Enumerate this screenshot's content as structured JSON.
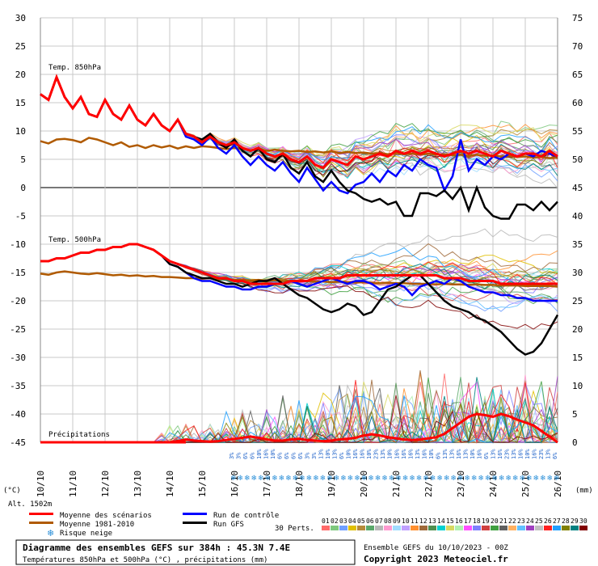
{
  "chart_data": {
    "type": "line",
    "title": "Diagramme des ensembles GEFS sur 384h : 45.3N 7.4E",
    "subtitle": "Températures 850hPa et 500hPa (°C) , précipitations (mm)",
    "run_info": "Ensemble GEFS du 10/10/2023 - 00Z",
    "copyright": "Copyright 2023 Meteociel.fr",
    "left_axis_unit": "(°C)",
    "right_axis_unit": "(mm)",
    "altitude": "Alt. 1502m",
    "left_ticks": [
      30,
      25,
      20,
      15,
      10,
      5,
      0,
      -5,
      -10,
      -15,
      -20,
      -25,
      -30,
      -35,
      -40,
      -45
    ],
    "right_ticks": [
      75,
      70,
      65,
      60,
      55,
      50,
      45,
      40,
      35,
      30,
      25,
      20,
      15,
      10,
      5,
      0
    ],
    "ylim_temp": [
      -45,
      30
    ],
    "ylim_precip": [
      0,
      75
    ],
    "precip_axis_note": "right scale: 850hPa panel offset +45, 500hPa panel offset +45, precip 0-15 mm lowest panel",
    "x_dates": [
      "10/10",
      "11/10",
      "12/10",
      "13/10",
      "14/10",
      "15/10",
      "16/10",
      "17/10",
      "18/10",
      "19/10",
      "20/10",
      "21/10",
      "22/10",
      "23/10",
      "24/10",
      "25/10",
      "26/10"
    ],
    "panel_labels": {
      "t850": "Temp. 850hPa",
      "t500": "Temp. 500hPa",
      "precip": "Précipitations"
    },
    "series": [
      {
        "name": "Moyenne des scénarios",
        "color": "#ff0000",
        "t850": [
          16.5,
          15.5,
          19.5,
          16,
          14,
          16,
          13,
          12.5,
          15.5,
          13,
          12,
          14.5,
          12,
          11,
          13,
          11,
          10,
          12,
          9.5,
          9,
          8,
          9,
          8,
          7.5,
          8,
          7,
          6.5,
          7,
          6,
          5.5,
          6,
          5,
          4.5,
          5.5,
          4,
          3.5,
          5,
          4.5,
          4,
          5.5,
          5,
          5.5,
          6,
          5.5,
          6.5,
          6,
          6.5,
          6,
          6.5,
          6,
          5.5,
          6,
          6.5,
          6,
          6.5,
          6,
          5.5,
          6.5,
          6,
          5.5,
          6,
          6,
          5.5,
          6.5,
          5.5
        ],
        "t500": [
          -13,
          -13,
          -12.5,
          -12.5,
          -12,
          -11.5,
          -11.5,
          -11,
          -11,
          -10.5,
          -10.5,
          -10,
          -10,
          -10.5,
          -11,
          -12,
          -13,
          -13.5,
          -14,
          -14.5,
          -15,
          -15.5,
          -16,
          -16,
          -16.5,
          -16.5,
          -17,
          -17,
          -17,
          -17,
          -17,
          -16.5,
          -16.5,
          -16.5,
          -16,
          -16,
          -16,
          -16,
          -15.5,
          -15.5,
          -15.5,
          -15.5,
          -15.5,
          -15.5,
          -15.5,
          -15.5,
          -15.5,
          -15.5,
          -15.5,
          -15.5,
          -16,
          -16,
          -16,
          -16.5,
          -16.5,
          -16.5,
          -16.5,
          -17,
          -17,
          -17,
          -17,
          -17,
          -17,
          -17,
          -17
        ],
        "precip": [
          0,
          0,
          0,
          0,
          0,
          0,
          0,
          0,
          0,
          0,
          0,
          0,
          0,
          0,
          0,
          0,
          0,
          0.2,
          0.5,
          0.3,
          0.2,
          0.1,
          0.2,
          0.4,
          0.6,
          0.8,
          1,
          0.8,
          0.5,
          0.3,
          0.3,
          0.5,
          0.6,
          0.4,
          0.3,
          0.2,
          0.3,
          0.5,
          0.6,
          0.8,
          1.2,
          1.4,
          1.2,
          0.9,
          0.7,
          0.5,
          0.4,
          0.5,
          0.7,
          0.9,
          1.5,
          2.5,
          3.5,
          4.5,
          5,
          4.8,
          4.5,
          5,
          4.6,
          4,
          3.5,
          3,
          2,
          1,
          0
        ]
      },
      {
        "name": "Moyenne 1981-2010",
        "color": "#b05a00",
        "t850": [
          8.2,
          7.8,
          8.5,
          8.6,
          8.4,
          8,
          8.8,
          8.5,
          8,
          7.5,
          8,
          7.2,
          7.5,
          7,
          7.5,
          7.1,
          7.4,
          6.9,
          7.3,
          7,
          7.3,
          7.2,
          7,
          6.8,
          7,
          6.8,
          6.6,
          6.8,
          6.5,
          6.7,
          6.5,
          6.4,
          6.5,
          6.3,
          6.4,
          6.2,
          6.4,
          6.1,
          6.3,
          6.1,
          6.2,
          6,
          6.1,
          5.9,
          6.1,
          5.9,
          6,
          5.8,
          6,
          5.8,
          5.9,
          5.7,
          5.8,
          5.6,
          5.8,
          5.6,
          5.7,
          5.5,
          5.6,
          5.4,
          5.5,
          5.3,
          5.4,
          5.2,
          5.3
        ],
        "t500": [
          -15.2,
          -15.4,
          -15,
          -14.8,
          -15,
          -15.2,
          -15.3,
          -15.1,
          -15.3,
          -15.5,
          -15.4,
          -15.6,
          -15.5,
          -15.7,
          -15.6,
          -15.8,
          -15.8,
          -15.9,
          -16,
          -16,
          -16.1,
          -16,
          -16.2,
          -16.1,
          -16.3,
          -16.3,
          -16.4,
          -16.3,
          -16.5,
          -16.4,
          -16.5,
          -16.5,
          -16.6,
          -16.5,
          -16.6,
          -16.6,
          -16.7,
          -16.6,
          -16.7,
          -16.8,
          -16.7,
          -16.8,
          -16.9,
          -16.8,
          -16.9,
          -16.9,
          -17,
          -17,
          -17,
          -17.1,
          -17,
          -17.1,
          -17.1,
          -17.2,
          -17.1,
          -17.2,
          -17.2,
          -17.3,
          -17.3,
          -17.3,
          -17.4,
          -17.4,
          -17.4,
          -17.4,
          -17.5
        ]
      },
      {
        "name": "Run de contrôle",
        "color": "#0000ff",
        "t850": [
          16.5,
          15.5,
          19.5,
          16,
          14,
          16,
          13,
          12.5,
          15.5,
          13,
          12,
          14.5,
          12,
          11,
          13,
          11,
          10,
          12,
          9,
          8.5,
          7.5,
          9,
          7,
          6,
          7.5,
          5.5,
          4,
          5.5,
          4,
          3,
          4.5,
          2.5,
          1,
          3.5,
          1.5,
          -0.5,
          1,
          -0.5,
          -1,
          0.5,
          1,
          2.5,
          1,
          3,
          2,
          4,
          3,
          5,
          4,
          3.5,
          -0.5,
          2,
          8.5,
          3,
          5,
          4,
          5.5,
          5,
          6,
          5.5,
          6,
          5.5,
          6.5,
          6,
          5.5
        ],
        "t500": [
          -13,
          -13,
          -12.5,
          -12.5,
          -12,
          -11.5,
          -11.5,
          -11,
          -11,
          -10.5,
          -10.5,
          -10,
          -10,
          -10.5,
          -11,
          -12,
          -13.5,
          -14,
          -15,
          -16,
          -16.5,
          -16.5,
          -17,
          -17.5,
          -17.5,
          -18,
          -18,
          -17.5,
          -17.5,
          -17,
          -17,
          -16.5,
          -17,
          -17.5,
          -17,
          -16.5,
          -16,
          -16.5,
          -17,
          -16.5,
          -16.5,
          -17,
          -18,
          -17.5,
          -17,
          -17.5,
          -19,
          -17.5,
          -17,
          -16.5,
          -17,
          -16,
          -16.5,
          -17.5,
          -18,
          -18.5,
          -18.5,
          -19,
          -19,
          -19.5,
          -19.5,
          -20,
          -20,
          -20,
          -20
        ]
      },
      {
        "name": "Run GFS",
        "color": "#000000",
        "t850": [
          16.5,
          15.5,
          19.5,
          16,
          14,
          16,
          13,
          12.5,
          15.5,
          13,
          12,
          14.5,
          12,
          11,
          13,
          11,
          10,
          12,
          9.5,
          9,
          8.5,
          9.5,
          8,
          7,
          8.5,
          6.5,
          5.5,
          7,
          5,
          4.5,
          6,
          3.5,
          2.5,
          4.5,
          2,
          1,
          3,
          1,
          -0.5,
          -1,
          -2,
          -2.5,
          -2,
          -3,
          -2.5,
          -5,
          -5,
          -1,
          -1,
          -1.5,
          -0.5,
          -2,
          0,
          -4,
          0,
          -3.5,
          -5,
          -5.5,
          -5.5,
          -3,
          -3,
          -4,
          -2.5,
          -4,
          -2.5
        ],
        "t500": [
          -13,
          -13,
          -12.5,
          -12.5,
          -12,
          -11.5,
          -11.5,
          -11,
          -11,
          -10.5,
          -10.5,
          -10,
          -10,
          -10.5,
          -11,
          -12,
          -13.5,
          -14,
          -15,
          -15.5,
          -16,
          -16,
          -16.5,
          -17,
          -17,
          -17.5,
          -17,
          -16.5,
          -16.5,
          -16,
          -17,
          -18,
          -19,
          -19.5,
          -20.5,
          -21.5,
          -22,
          -21.5,
          -20.5,
          -21,
          -22.5,
          -22,
          -20,
          -18,
          -17.5,
          -16.5,
          -15.5,
          -15.5,
          -17,
          -18.5,
          -20,
          -21,
          -21.5,
          -22,
          -23,
          -23.5,
          -24.5,
          -25.5,
          -27,
          -28.5,
          -29.5,
          -29,
          -27.5,
          -25,
          -22.5
        ]
      }
    ],
    "snow_risk_labels": [
      "3%",
      "3%",
      "6%",
      "6%",
      "10%",
      "16%",
      "10%",
      "6%",
      "6%",
      "6%",
      "6%",
      "3%",
      "3%",
      "13%",
      "10%",
      "13%",
      "6%",
      "10%",
      "16%",
      "16%",
      "10%",
      "23%",
      "13%",
      "10%",
      "16%",
      "16%",
      "16%",
      "13%",
      "16%",
      "10%",
      "6%",
      "13%",
      "13%",
      "16%",
      "13%",
      "10%",
      "16%",
      "6%",
      "13%",
      "16%",
      "23%",
      "13%",
      "16%",
      "10%",
      "16%",
      "23%",
      "13%",
      "6%"
    ],
    "precip_spike_note": "individual member spikes up to ~20 mm",
    "legend": [
      {
        "label": "Moyenne des scénarios",
        "color": "#ff0000"
      },
      {
        "label": "Run de contrôle",
        "color": "#0000ff"
      },
      {
        "label": "Moyenne 1981-2010",
        "color": "#b05a00"
      },
      {
        "label": "Run GFS",
        "color": "#000000"
      },
      {
        "label": "Risque neige",
        "icon": "snowflake-icon",
        "color": "#2a8fd8"
      }
    ],
    "perts_label": "30 Perts.",
    "perts_numbers": [
      "01",
      "02",
      "03",
      "04",
      "05",
      "06",
      "07",
      "08",
      "09",
      "10",
      "11",
      "12",
      "13",
      "14",
      "15",
      "16",
      "17",
      "18",
      "19",
      "20",
      "21",
      "22",
      "23",
      "24",
      "25",
      "26",
      "27",
      "28",
      "29",
      "30"
    ],
    "perts_colors": [
      "#ff6a6a",
      "#7ec87e",
      "#6f9fff",
      "#e0c000",
      "#b58a3a",
      "#5aa86a",
      "#b7b7b7",
      "#ff9ad0",
      "#a0dcff",
      "#c0a0ff",
      "#ff9030",
      "#a06a3a",
      "#4f8f4f",
      "#00d0d0",
      "#d8d860",
      "#b0f0b0",
      "#ff50ff",
      "#8080ff",
      "#d04040",
      "#40a040",
      "#606060",
      "#ffb060",
      "#60c0ff",
      "#a040c0",
      "#c0c0c0",
      "#ff2020",
      "#20a0ff",
      "#808000",
      "#008080",
      "#800000"
    ]
  }
}
